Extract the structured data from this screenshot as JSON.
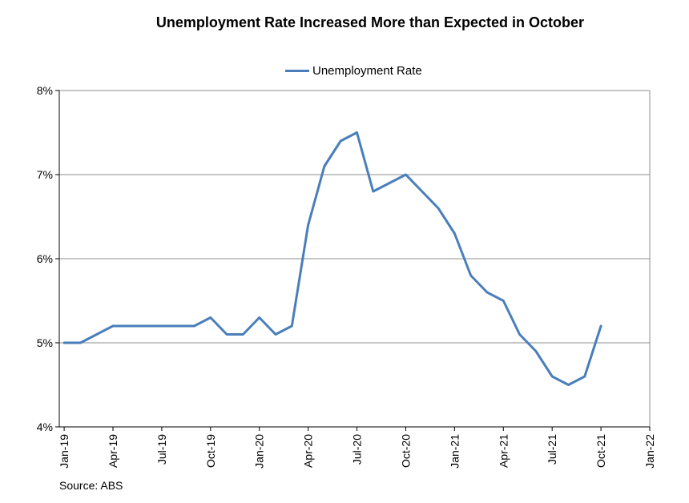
{
  "chart_data": {
    "type": "line",
    "title": "Unemployment Rate Increased More than Expected in October",
    "source": "Source: ABS",
    "xlabel": "",
    "ylabel": "",
    "ylim": [
      4,
      8
    ],
    "yticks": [
      "4%",
      "5%",
      "6%",
      "7%",
      "8%"
    ],
    "ytick_values": [
      4,
      5,
      6,
      7,
      8
    ],
    "xticks": [
      "Jan-19",
      "Apr-19",
      "Jul-19",
      "Oct-19",
      "Jan-20",
      "Apr-20",
      "Jul-20",
      "Oct-20",
      "Jan-21",
      "Apr-21",
      "Jul-21",
      "Oct-21",
      "Jan-22"
    ],
    "xtick_month_index": [
      0,
      3,
      6,
      9,
      12,
      15,
      18,
      21,
      24,
      27,
      30,
      33,
      36
    ],
    "xlim_month_index": [
      -0.3,
      36
    ],
    "grid": true,
    "legend_position": "top-center",
    "series": [
      {
        "name": "Unemployment Rate",
        "color": "#4A7EBB",
        "month_index": [
          0,
          1,
          2,
          3,
          4,
          5,
          6,
          7,
          8,
          9,
          10,
          11,
          12,
          13,
          14,
          15,
          16,
          17,
          18,
          19,
          20,
          21,
          22,
          23,
          24,
          25,
          26,
          27,
          28,
          29,
          30,
          31,
          32,
          33
        ],
        "values": [
          5.0,
          5.0,
          5.1,
          5.2,
          5.2,
          5.2,
          5.2,
          5.2,
          5.2,
          5.3,
          5.1,
          5.1,
          5.3,
          5.1,
          5.2,
          6.4,
          7.1,
          7.4,
          7.5,
          6.8,
          6.9,
          7.0,
          6.8,
          6.6,
          6.3,
          5.8,
          5.6,
          5.5,
          5.1,
          4.9,
          4.6,
          4.5,
          4.6,
          5.2
        ]
      }
    ]
  }
}
